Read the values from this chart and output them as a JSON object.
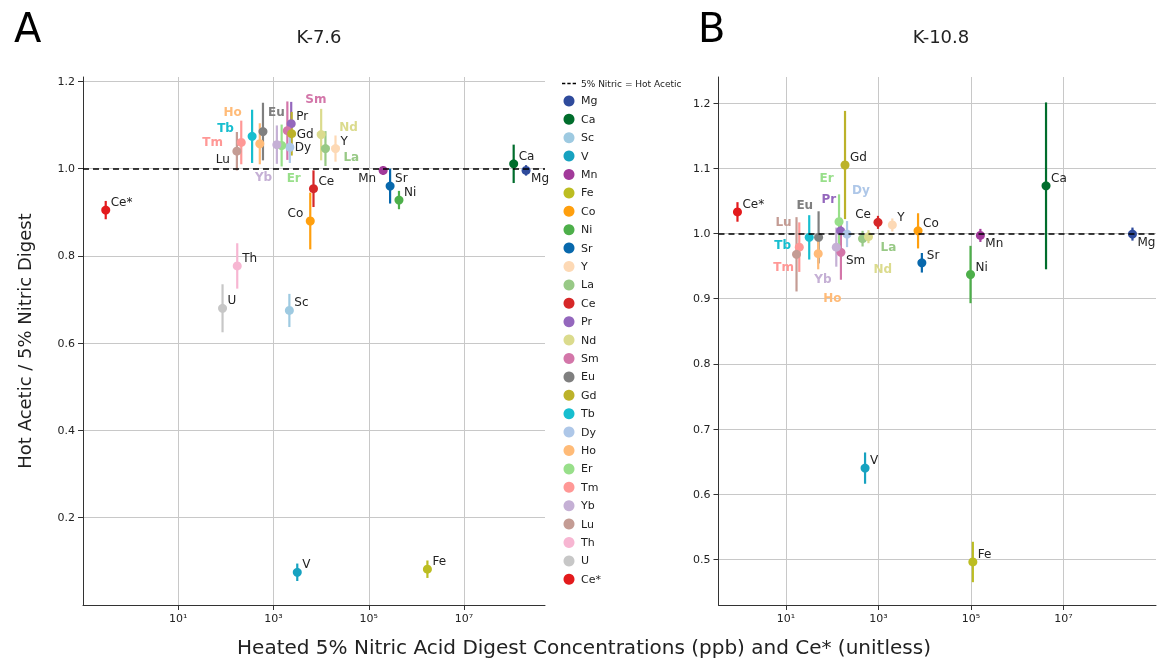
{
  "chart_data": [
    {
      "type": "scatter",
      "title": "K-7.6",
      "annotations": [
        "A"
      ],
      "ylabel": "Hot Acetic / 5% Nitric Digest",
      "xlabel": "Heated 5% Nitric Acid Digest Concentrations (ppb) and Ce* (unitless)",
      "log": "x",
      "xlim": [
        0.1,
        500000000
      ],
      "ylim": [
        0,
        1.21
      ],
      "xticks": [
        {
          "value": 10,
          "label": "10¹"
        },
        {
          "value": 1000,
          "label": "10³"
        },
        {
          "value": 100000,
          "label": "10⁵"
        },
        {
          "value": 10000000,
          "label": "10⁷"
        }
      ],
      "yticks": [
        0.2,
        0.4,
        0.6,
        0.8,
        {
          "value": 1,
          "label": "1.0"
        },
        1.2
      ],
      "grid": true,
      "legend": "right",
      "marker": "circle",
      "ref_lines": [
        {
          "axis": "y",
          "value": 1,
          "label": "5% Nitric = Hot Acetic",
          "color": "#000000",
          "line_style": "dashed"
        }
      ],
      "series": [
        {
          "name": "Mg",
          "color": "#2f4b9c",
          "x": [
            200000000
          ],
          "values": [
            0.996
          ],
          "errors": [
            0.012
          ]
        },
        {
          "name": "Ca",
          "color": "#006d2c",
          "x": [
            110000000
          ],
          "values": [
            1.011
          ],
          "errors": [
            0.044
          ]
        },
        {
          "name": "Sc",
          "color": "#9ecae1",
          "x": [
            2150
          ],
          "values": [
            0.675
          ],
          "errors": [
            0.038
          ]
        },
        {
          "name": "V",
          "color": "#17a2c0",
          "x": [
            3150
          ],
          "values": [
            0.075
          ],
          "errors": [
            0.02
          ]
        },
        {
          "name": "Mn",
          "color": "#a23a9a",
          "x": [
            200000
          ],
          "values": [
            0.996
          ],
          "errors": [
            0.01
          ]
        },
        {
          "name": "Fe",
          "color": "#bcbd22",
          "x": [
            1700000
          ],
          "values": [
            0.082
          ],
          "errors": [
            0.02
          ]
        },
        {
          "name": "Co",
          "color": "#ff9f0e",
          "x": [
            5900
          ],
          "values": [
            0.88
          ],
          "errors": [
            0.065
          ]
        },
        {
          "name": "Ni",
          "color": "#4daf4a",
          "x": [
            430000
          ],
          "values": [
            0.928
          ],
          "errors": [
            0.021
          ]
        },
        {
          "name": "Sr",
          "color": "#0868ac",
          "x": [
            280000
          ],
          "values": [
            0.96
          ],
          "errors": [
            0.04
          ]
        },
        {
          "name": "Y",
          "color": "#fdd9b5",
          "x": [
            20000
          ],
          "values": [
            1.046
          ],
          "errors": [
            0.03
          ]
        },
        {
          "name": "La",
          "color": "#98c986",
          "x": [
            12300
          ],
          "values": [
            1.046
          ],
          "errors": [
            0.04
          ]
        },
        {
          "name": "Ce",
          "color": "#d62728",
          "x": [
            6900
          ],
          "values": [
            0.954
          ],
          "errors": [
            0.042
          ]
        },
        {
          "name": "Pr",
          "color": "#9467bd",
          "x": [
            2350
          ],
          "values": [
            1.103
          ],
          "errors": [
            0.05
          ]
        },
        {
          "name": "Nd",
          "color": "#dbdb8d",
          "x": [
            10000
          ],
          "values": [
            1.078
          ],
          "errors": [
            0.059
          ]
        },
        {
          "name": "Sm",
          "color": "#d376a9",
          "x": [
            1950
          ],
          "values": [
            1.087
          ],
          "errors": [
            0.067
          ]
        },
        {
          "name": "Eu",
          "color": "#7f7f7f",
          "x": [
            600
          ],
          "values": [
            1.085
          ],
          "errors": [
            0.066
          ]
        },
        {
          "name": "Gd",
          "color": "#bcb22a",
          "x": [
            2400
          ],
          "values": [
            1.08
          ],
          "errors": [
            0.05
          ]
        },
        {
          "name": "Tb",
          "color": "#17becf",
          "x": [
            355
          ],
          "values": [
            1.074
          ],
          "errors": [
            0.061
          ]
        },
        {
          "name": "Dy",
          "color": "#aec7e8",
          "x": [
            2200
          ],
          "values": [
            1.049
          ],
          "errors": [
            0.036
          ]
        },
        {
          "name": "Ho",
          "color": "#ffbb78",
          "x": [
            515
          ],
          "values": [
            1.057
          ],
          "errors": [
            0.047
          ]
        },
        {
          "name": "Er",
          "color": "#98df8a",
          "x": [
            1480
          ],
          "values": [
            1.053
          ],
          "errors": [
            0.048
          ]
        },
        {
          "name": "Tm",
          "color": "#ff9896",
          "x": [
            210
          ],
          "values": [
            1.06
          ],
          "errors": [
            0.05
          ]
        },
        {
          "name": "Yb",
          "color": "#c5b0d5",
          "x": [
            1175
          ],
          "values": [
            1.055
          ],
          "errors": [
            0.044
          ]
        },
        {
          "name": "Lu",
          "color": "#c49c94",
          "x": [
            170
          ],
          "values": [
            1.04
          ],
          "errors": [
            0.044
          ]
        },
        {
          "name": "Th",
          "color": "#f7b6d2",
          "x": [
            173
          ],
          "values": [
            0.777
          ],
          "errors": [
            0.052
          ]
        },
        {
          "name": "U",
          "color": "#c7c7c7",
          "x": [
            85
          ],
          "values": [
            0.68
          ],
          "errors": [
            0.055
          ]
        },
        {
          "name": "Ce*",
          "color": "#e31a1c",
          "x": [
            0.3
          ],
          "values": [
            0.905
          ],
          "errors": [
            0.021
          ]
        }
      ]
    },
    {
      "type": "scatter",
      "title": "K-10.8",
      "annotations": [
        "B"
      ],
      "log": "x",
      "xlim": [
        0.35,
        1000000000
      ],
      "ylim": [
        0.43,
        1.24
      ],
      "xticks": [
        {
          "value": 10,
          "label": "10¹"
        },
        {
          "value": 1000,
          "label": "10³"
        },
        {
          "value": 100000,
          "label": "10⁵"
        },
        {
          "value": 10000000,
          "label": "10⁷"
        }
      ],
      "yticks": [
        0.5,
        0.6,
        0.7,
        0.8,
        0.9,
        {
          "value": 1,
          "label": "1.0"
        },
        1.1,
        1.2
      ],
      "grid": true,
      "legend": false,
      "marker": "circle",
      "ref_lines": [
        {
          "axis": "y",
          "value": 1,
          "color": "#000000",
          "line_style": "dashed"
        }
      ],
      "series": [
        {
          "name": "Mg",
          "color": "#2f4b9c",
          "x": [
            310000000
          ],
          "values": [
            0.999
          ],
          "errors": [
            0.01
          ]
        },
        {
          "name": "Ca",
          "color": "#006d2c",
          "x": [
            4200000
          ],
          "values": [
            1.073
          ],
          "errors": [
            0.128
          ]
        },
        {
          "name": "V",
          "color": "#17a2c0",
          "x": [
            515
          ],
          "values": [
            0.64
          ],
          "errors": [
            0.024
          ]
        },
        {
          "name": "Mn",
          "color": "#a23a9a",
          "x": [
            160000
          ],
          "values": [
            0.997
          ],
          "errors": [
            0.01
          ]
        },
        {
          "name": "Fe",
          "color": "#bcbd22",
          "x": [
            110000
          ],
          "values": [
            0.496
          ],
          "errors": [
            0.031
          ]
        },
        {
          "name": "Co",
          "color": "#ff9f0e",
          "x": [
            7200
          ],
          "values": [
            1.004
          ],
          "errors": [
            0.027
          ]
        },
        {
          "name": "Ni",
          "color": "#4daf4a",
          "x": [
            98000
          ],
          "values": [
            0.937
          ],
          "errors": [
            0.044
          ]
        },
        {
          "name": "Sr",
          "color": "#0868ac",
          "x": [
            8700
          ],
          "values": [
            0.955
          ],
          "errors": [
            0.015
          ]
        },
        {
          "name": "Y",
          "color": "#fdd9b5",
          "x": [
            2000
          ],
          "values": [
            1.013
          ],
          "errors": [
            0.01
          ]
        },
        {
          "name": "La",
          "color": "#98c986",
          "x": [
            455
          ],
          "values": [
            0.992
          ],
          "errors": [
            0.012
          ]
        },
        {
          "name": "Ce",
          "color": "#d62728",
          "x": [
            980
          ],
          "values": [
            1.017
          ],
          "errors": [
            0.01
          ]
        },
        {
          "name": "Pr",
          "color": "#9467bd",
          "x": [
            152
          ],
          "values": [
            1.004
          ],
          "errors": [
            0.02
          ]
        },
        {
          "name": "Nd",
          "color": "#dbdb8d",
          "x": [
            610
          ],
          "values": [
            0.995
          ],
          "errors": [
            0.01
          ]
        },
        {
          "name": "Sm",
          "color": "#d376a9",
          "x": [
            155
          ],
          "values": [
            0.971
          ],
          "errors": [
            0.042
          ]
        },
        {
          "name": "Eu",
          "color": "#7f7f7f",
          "x": [
            51
          ],
          "values": [
            0.994
          ],
          "errors": [
            0.04
          ]
        },
        {
          "name": "Gd",
          "color": "#bcb22a",
          "x": [
            190
          ],
          "values": [
            1.105
          ],
          "errors": [
            0.083
          ]
        },
        {
          "name": "Tb",
          "color": "#17becf",
          "x": [
            32
          ],
          "values": [
            0.994
          ],
          "errors": [
            0.034
          ]
        },
        {
          "name": "Dy",
          "color": "#aec7e8",
          "x": [
            210
          ],
          "values": [
            0.999
          ],
          "errors": [
            0.02
          ]
        },
        {
          "name": "Ho",
          "color": "#ffbb78",
          "x": [
            50
          ],
          "values": [
            0.969
          ],
          "errors": [
            0.024
          ]
        },
        {
          "name": "Er",
          "color": "#98df8a",
          "x": [
            141
          ],
          "values": [
            1.018
          ],
          "errors": [
            0.042
          ]
        },
        {
          "name": "Tm",
          "color": "#ff9896",
          "x": [
            19.5
          ],
          "values": [
            0.979
          ],
          "errors": [
            0.038
          ]
        },
        {
          "name": "Yb",
          "color": "#c5b0d5",
          "x": [
            123
          ],
          "values": [
            0.979
          ],
          "errors": [
            0.03
          ]
        },
        {
          "name": "Lu",
          "color": "#c49c94",
          "x": [
            17
          ],
          "values": [
            0.968
          ],
          "errors": [
            0.057
          ]
        },
        {
          "name": "Ce*",
          "color": "#e31a1c",
          "x": [
            0.9
          ],
          "values": [
            1.033
          ],
          "errors": [
            0.015
          ]
        }
      ]
    }
  ]
}
